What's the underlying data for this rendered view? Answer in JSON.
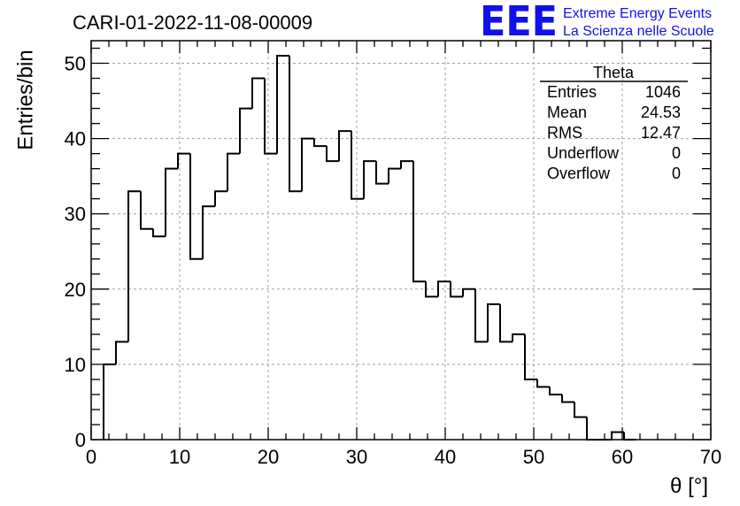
{
  "chart_data": {
    "type": "histogram",
    "title": "CARI-01-2022-11-08-00009",
    "xlabel": "θ [°]",
    "ylabel": "Entries/bin",
    "xlim": [
      0,
      70
    ],
    "ylim": [
      0,
      53
    ],
    "bin_width": 1.4,
    "bin_start": 1.4,
    "x_ticks": [
      0,
      10,
      20,
      30,
      40,
      50,
      60,
      70
    ],
    "y_ticks": [
      0,
      10,
      20,
      30,
      40,
      50
    ],
    "grid": true,
    "values": [
      10,
      13,
      33,
      28,
      27,
      36,
      38,
      24,
      31,
      33,
      38,
      44,
      48,
      38,
      51,
      33,
      40,
      39,
      37,
      41,
      32,
      37,
      34,
      36,
      37,
      21,
      19,
      21,
      19,
      20,
      13,
      18,
      13,
      14,
      8,
      7,
      6,
      5,
      3,
      0,
      0,
      1,
      0
    ],
    "stats_box": {
      "title": "Theta",
      "rows": [
        {
          "label": "Entries",
          "value": "1046"
        },
        {
          "label": "Mean",
          "value": "24.53"
        },
        {
          "label": "RMS",
          "value": "12.47"
        },
        {
          "label": "Underflow",
          "value": "0"
        },
        {
          "label": "Overflow",
          "value": "0"
        }
      ]
    }
  },
  "logo": {
    "mark": "EEE",
    "line1": "Extreme Energy Events",
    "line2": "La Scienza nelle Scuole"
  },
  "colors": {
    "line": "#000000",
    "grid": "#a0a0a0",
    "logo": "#1010ee"
  }
}
